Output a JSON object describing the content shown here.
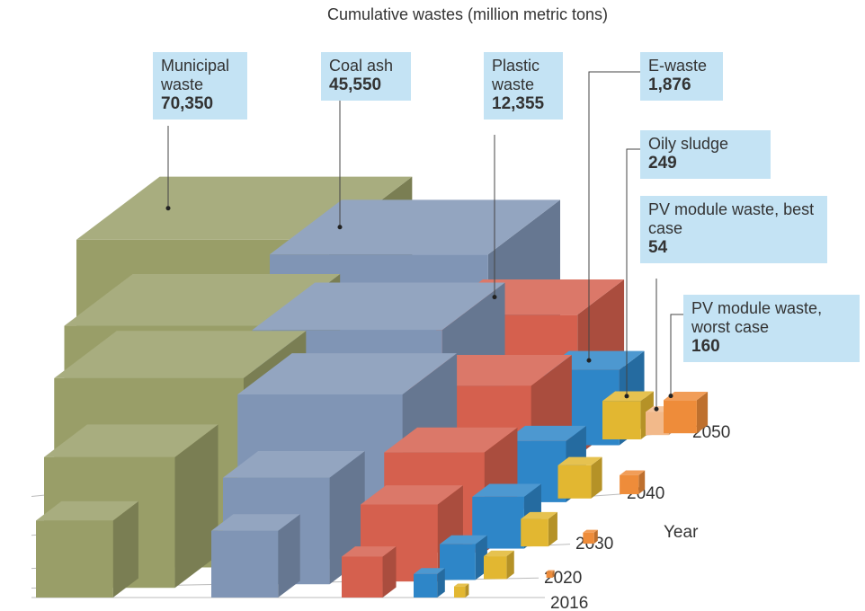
{
  "chart_data": {
    "type": "bar3d",
    "title": "Cumulative wastes (million metric tons)",
    "depth_axis_label": "Year",
    "categories": [
      "2016",
      "2020",
      "2030",
      "2040",
      "2050"
    ],
    "series": [
      {
        "name": "Municipal waste",
        "color": "#999e68",
        "values": [
          2000,
          9800,
          29700,
          39000,
          70350
        ],
        "value_labels": [
          null,
          null,
          null,
          null,
          "70,350"
        ]
      },
      {
        "name": "Coal ash",
        "color": "#8095b5",
        "values": [
          1300,
          5300,
          19600,
          30000,
          45550
        ],
        "value_labels": [
          null,
          null,
          null,
          null,
          "45,550"
        ]
      },
      {
        "name": "Plastic waste",
        "color": "#d5604e",
        "values": [
          300,
          2000,
          4400,
          8200,
          12355
        ],
        "value_labels": [
          null,
          null,
          null,
          null,
          "12,355"
        ]
      },
      {
        "name": "E-waste",
        "color": "#2e86c8",
        "values": [
          57,
          200,
          610,
          1000,
          1876
        ],
        "value_labels": [
          null,
          null,
          null,
          null,
          "1,876"
        ]
      },
      {
        "name": "Oily sludge",
        "color": "#e2b731",
        "values": [
          6,
          52,
          91,
          160,
          249
        ],
        "value_labels": [
          null,
          null,
          null,
          null,
          "249"
        ]
      },
      {
        "name": "PV module waste, best case",
        "color": "#f2b98a",
        "values": [
          null,
          null,
          null,
          null,
          54
        ],
        "value_labels": [
          null,
          null,
          null,
          null,
          "54"
        ]
      },
      {
        "name": "PV module waste, worst case",
        "color": "#ee8c3a",
        "values": [
          0,
          1,
          6,
          30,
          160
        ],
        "value_labels": [
          null,
          null,
          null,
          null,
          "160"
        ]
      }
    ]
  }
}
